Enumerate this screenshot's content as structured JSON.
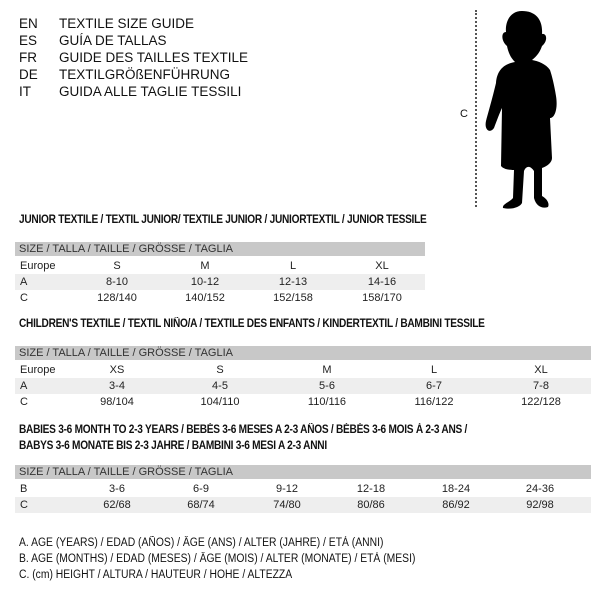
{
  "header": [
    {
      "code": "EN",
      "text": "TEXTILE SIZE GUIDE"
    },
    {
      "code": "ES",
      "text": "GUÍA DE TALLAS"
    },
    {
      "code": "FR",
      "text": "GUIDE DES TAILLES TEXTILE"
    },
    {
      "code": "DE",
      "text": "TEXTILGRÖßENFÜHRUNG"
    },
    {
      "code": "IT",
      "text": "GUIDA ALLE TAGLIE TESSILI"
    }
  ],
  "figure": {
    "measure_label": "C",
    "icon": "child-silhouette"
  },
  "tables": [
    {
      "title": [
        "JUNIOR TEXTILE / TEXTIL JUNIOR/ TEXTILE JUNIOR / JUNIORTEXTIL / JUNIOR TESSILE"
      ],
      "header": "SIZE / TALLA / TAILLE / GRÖSSE / TAGLIA",
      "rows": [
        {
          "label": "Europe",
          "values": [
            "S",
            "M",
            "L",
            "XL"
          ]
        },
        {
          "label": "A",
          "values": [
            "8-10",
            "10-12",
            "12-13",
            "14-16"
          ]
        },
        {
          "label": "C",
          "values": [
            "128/140",
            "140/152",
            "152/158",
            "158/170"
          ]
        }
      ]
    },
    {
      "title": [
        "CHILDREN'S TEXTILE / TEXTIL NIÑO/A / TEXTILE DES ENFANTS / KINDERTEXTIL / BAMBINI TESSILE"
      ],
      "header": "SIZE / TALLA / TAILLE / GRÖSSE / TAGLIA",
      "rows": [
        {
          "label": "Europe",
          "values": [
            "XS",
            "S",
            "M",
            "L",
            "XL"
          ]
        },
        {
          "label": "A",
          "values": [
            "3-4",
            "4-5",
            "5-6",
            "6-7",
            "7-8"
          ]
        },
        {
          "label": "C",
          "values": [
            "98/104",
            "104/110",
            "110/116",
            "116/122",
            "122/128"
          ]
        }
      ]
    },
    {
      "title": [
        "BABIES 3-6 MONTH TO 2-3 YEARS / BEBÉS 3-6 MESES A 2-3 AÑOS / BÉBÉS 3-6 MOIS À 2-3 ANS /",
        "BABYS 3-6 MONATE BIS 2-3 JAHRE / BAMBINI 3-6 MESI A 2-3 ANNI"
      ],
      "header": "SIZE / TALLA / TAILLE / GRÖSSE / TAGLIA",
      "rows": [
        {
          "label": "B",
          "values": [
            "3-6",
            "6-9",
            "9-12",
            "12-18",
            "18-24",
            "24-36"
          ]
        },
        {
          "label": "C",
          "values": [
            "62/68",
            "68/74",
            "74/80",
            "80/86",
            "86/92",
            "92/98"
          ]
        }
      ]
    }
  ],
  "legend": [
    "A. AGE (YEARS) / EDAD (AÑOS) / ÂGE (ANS) / ALTER (JAHRE) / ETÀ (ANNI)",
    "B. AGE (MONTHS) / EDAD (MESES) / ÂGE (MOIS) / ALTER (MONATE) / ETÀ (MESI)",
    "C. (cm) HEIGHT / ALTURA / HAUTEUR / HÖHE / ALTEZZA"
  ]
}
